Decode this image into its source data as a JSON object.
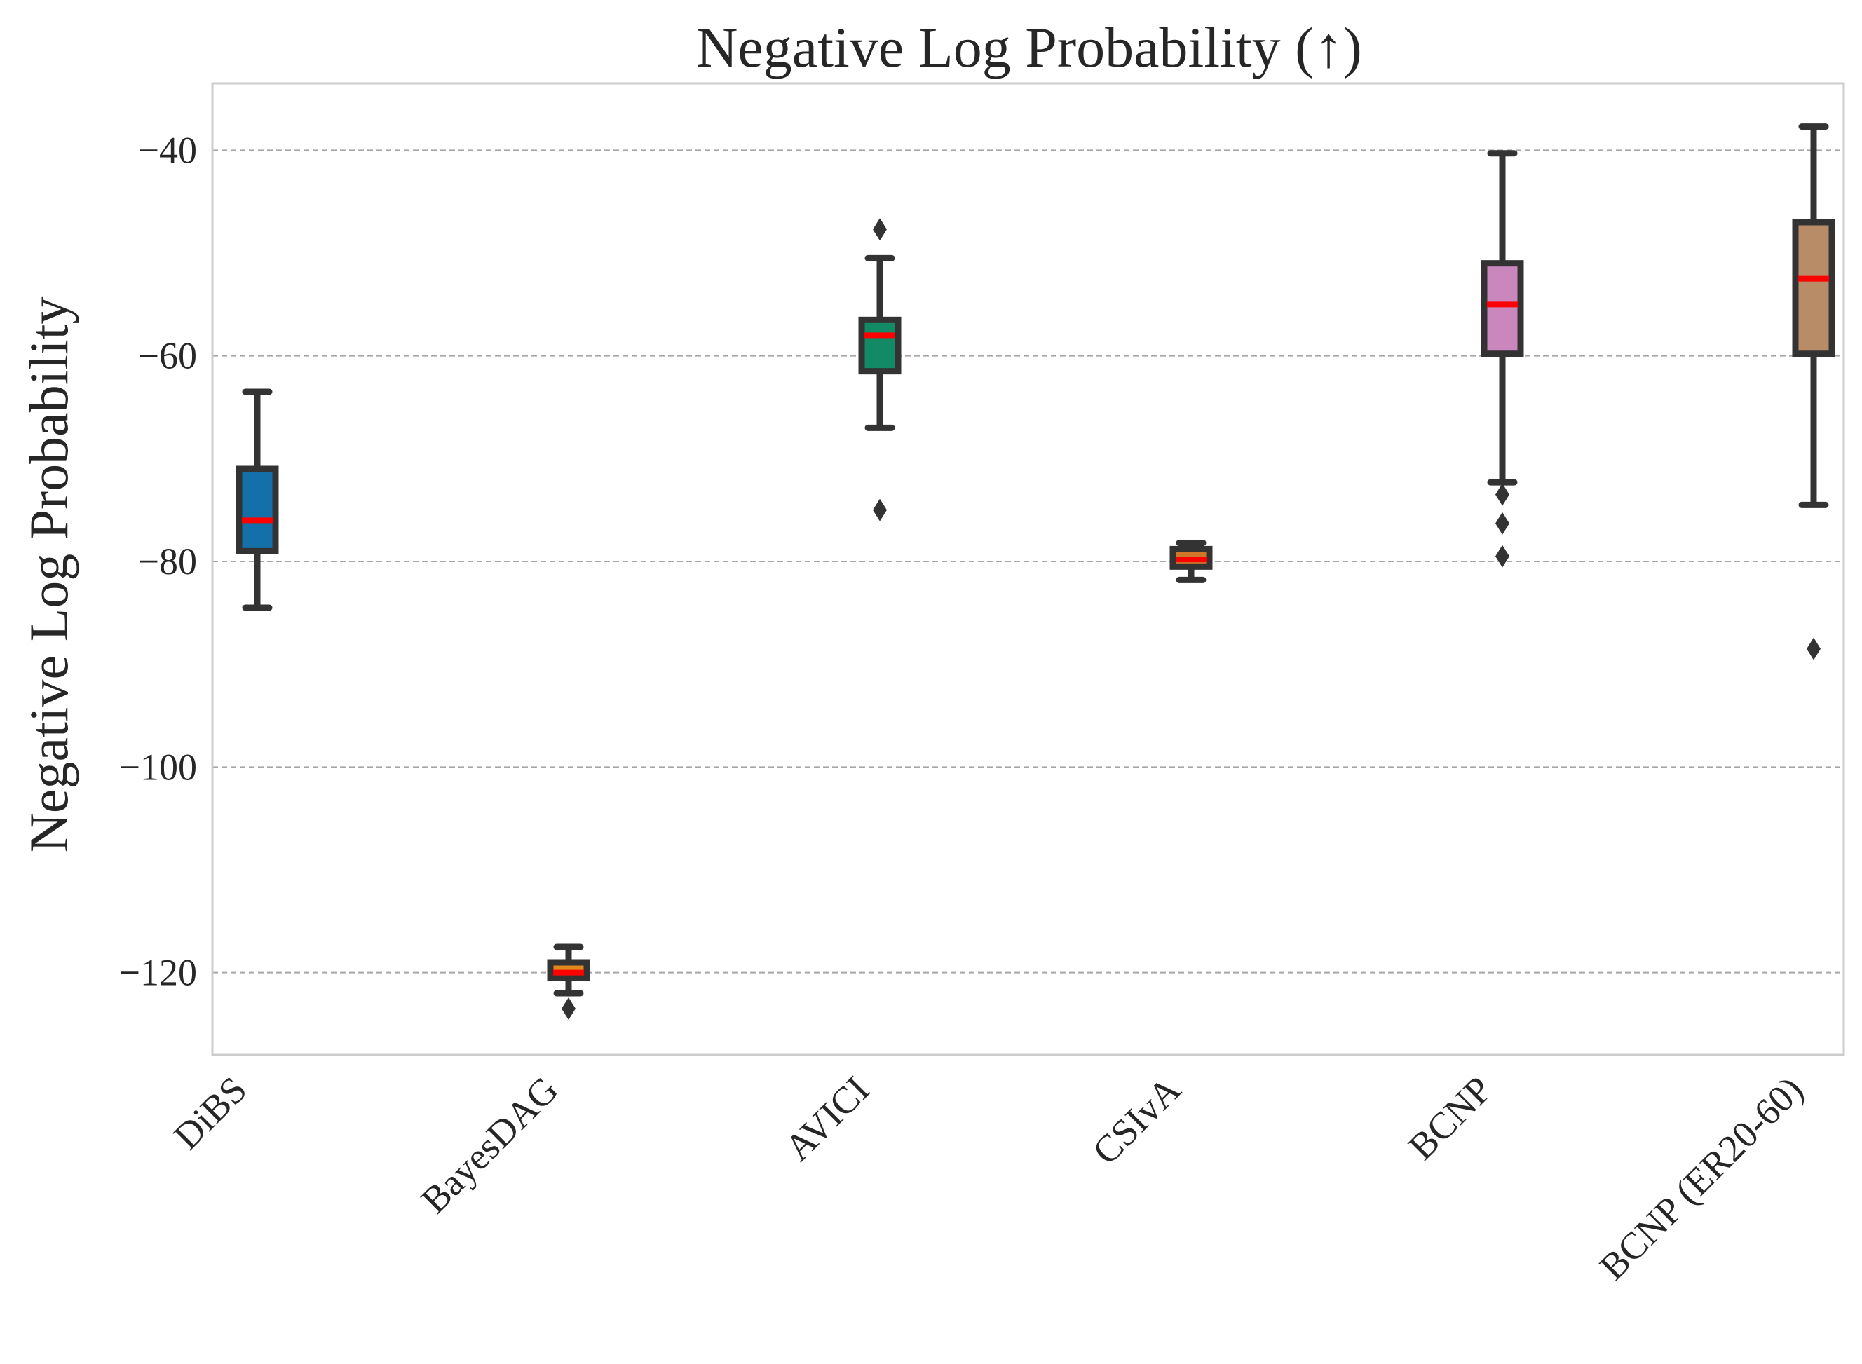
{
  "chart_data": {
    "type": "box",
    "title": "Negative Log Probability (↑)",
    "xlabel": "",
    "ylabel": "Negative Log Probability",
    "ylim": [
      -128,
      -33.5
    ],
    "yticks": [
      -40,
      -60,
      -80,
      -100,
      -120
    ],
    "ytick_labels": [
      "−40",
      "−60",
      "−80",
      "−100",
      "−120"
    ],
    "grid": "horizontal-dashed",
    "colors": {
      "box_edge": "#333333",
      "median": "#ff0000",
      "grid": "#a6a6a6",
      "frame": "#cccccc"
    },
    "boxes": [
      {
        "category": "DiBS",
        "color": "#1470a8",
        "whisker_low": -84.5,
        "q1": -79.0,
        "median": -76.0,
        "q3": -71.0,
        "whisker_high": -63.5,
        "outliers": []
      },
      {
        "category": "BayesDAG",
        "color": "#e08a1e",
        "whisker_low": -122.0,
        "q1": -120.5,
        "median": -120.0,
        "q3": -119.0,
        "whisker_high": -117.5,
        "outliers": [
          -123.5
        ]
      },
      {
        "category": "AVICI",
        "color": "#138a66",
        "whisker_low": -67.0,
        "q1": -61.5,
        "median": -58.0,
        "q3": -56.5,
        "whisker_high": -50.5,
        "outliers": [
          -47.7,
          -75.0
        ]
      },
      {
        "category": "CSIvA",
        "color": "#d0772a",
        "whisker_low": -81.8,
        "q1": -80.5,
        "median": -79.8,
        "q3": -78.8,
        "whisker_high": -78.2,
        "outliers": []
      },
      {
        "category": "BCNP",
        "color": "#c987bd",
        "whisker_low": -72.3,
        "q1": -59.8,
        "median": -55.0,
        "q3": -51.0,
        "whisker_high": -40.3,
        "outliers": [
          -73.5,
          -76.3,
          -79.5
        ]
      },
      {
        "category": "BCNP (ER20-60)",
        "color": "#b98c68",
        "whisker_low": -74.5,
        "q1": -59.8,
        "median": -52.5,
        "q3": -47.0,
        "whisker_high": -37.7,
        "outliers": [
          -88.5
        ]
      }
    ]
  }
}
